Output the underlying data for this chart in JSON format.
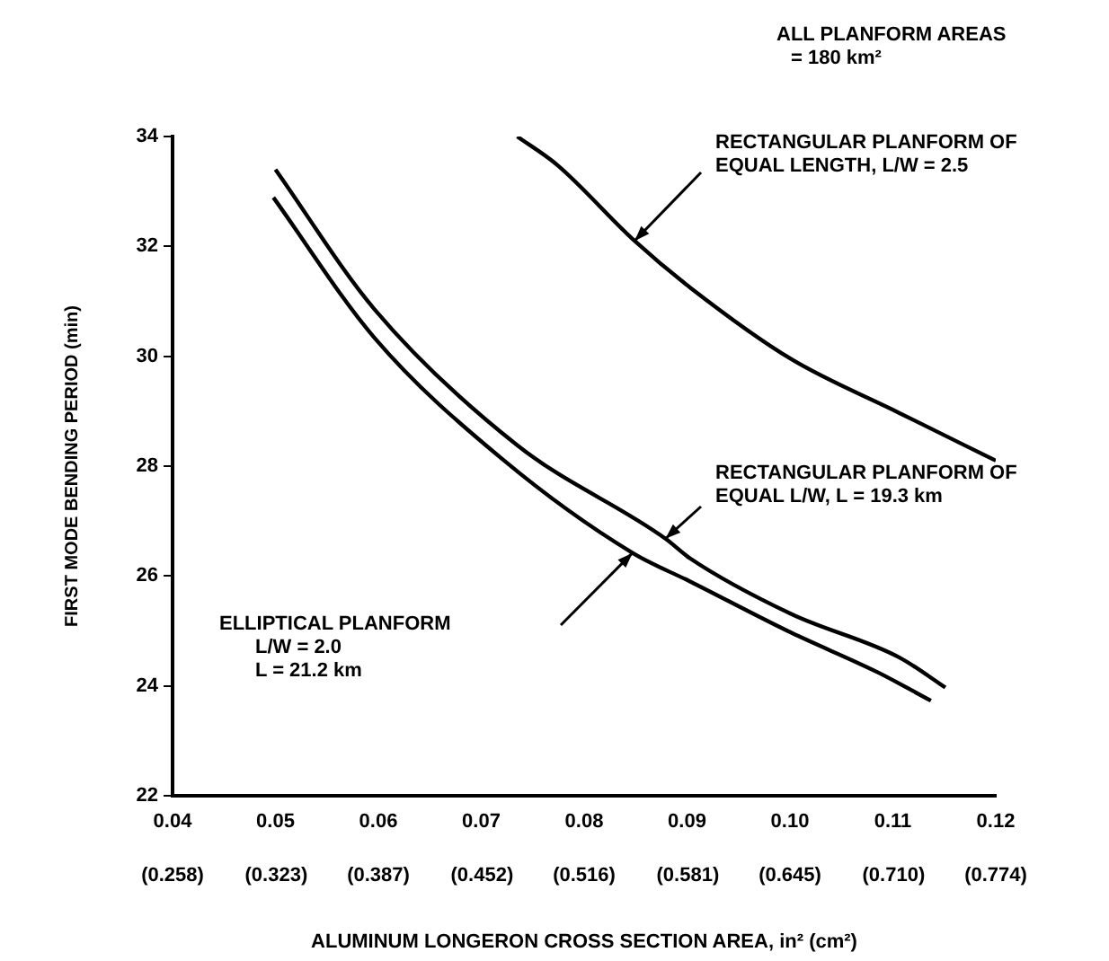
{
  "chart_data": {
    "type": "line",
    "xlabel": "ALUMINUM LONGERON CROSS SECTION AREA, in² (cm²)",
    "ylabel": "FIRST MODE BENDING PERIOD (min)",
    "xlim": [
      0.04,
      0.12
    ],
    "ylim": [
      22,
      34
    ],
    "xticks": [
      0.04,
      0.05,
      0.06,
      0.07,
      0.08,
      0.09,
      {
        "value": 0.1,
        "label": "0.10"
      },
      0.11,
      0.12
    ],
    "x2lim": [
      0.258,
      0.774
    ],
    "x2ticks": [
      {
        "value": 0.258,
        "label": "(0.258)"
      },
      {
        "value": 0.323,
        "label": "(0.323)"
      },
      {
        "value": 0.387,
        "label": "(0.387)"
      },
      {
        "value": 0.452,
        "label": "(0.452)"
      },
      {
        "value": 0.516,
        "label": "(0.516)"
      },
      {
        "value": 0.581,
        "label": "(0.581)"
      },
      {
        "value": 0.645,
        "label": "(0.645)"
      },
      {
        "value": 0.71,
        "label": "(0.710)"
      },
      {
        "value": 0.774,
        "label": "(0.774)"
      }
    ],
    "yticks": [
      22,
      24,
      26,
      28,
      30,
      32,
      34
    ],
    "grid": false,
    "legend": false,
    "marker": "none",
    "line_style": "solid",
    "series": [
      {
        "color": "#000000",
        "x": [
          0.0735,
          0.0774,
          0.0849,
          0.0903,
          0.1001,
          0.1106,
          0.12
        ],
        "values": [
          34.0,
          33.48,
          32.1,
          31.25,
          29.95,
          28.97,
          28.1
        ]
      },
      {
        "color": "#000000",
        "x": [
          0.05,
          0.0596,
          0.0735,
          0.0879,
          0.0903,
          0.1001,
          0.1106,
          0.1151
        ],
        "values": [
          33.4,
          30.86,
          28.38,
          26.68,
          26.32,
          25.31,
          24.52,
          23.97
        ]
      },
      {
        "color": "#000000",
        "x": [
          0.0498,
          0.0596,
          0.0721,
          0.0847,
          0.0903,
          0.1001,
          0.1085,
          0.1137
        ],
        "values": [
          32.89,
          30.34,
          28.12,
          26.42,
          25.9,
          24.97,
          24.25,
          23.73
        ]
      }
    ],
    "annotations": [
      "ALL PLANFORM AREAS\n= 180 km²",
      {
        "text": "RECTANGULAR PLANFORM OF\nEQUAL LENGTH, L/W = 2.5",
        "x": 0.0849,
        "y": 32.1
      },
      {
        "text": "RECTANGULAR PLANFORM OF\nEQUAL L/W, L = 19.3 km",
        "x": 0.0879,
        "y": 26.68
      },
      "ELLIPTICAL PLANFORM\nL/W = 2.0\nL = 21.2 km"
    ]
  }
}
